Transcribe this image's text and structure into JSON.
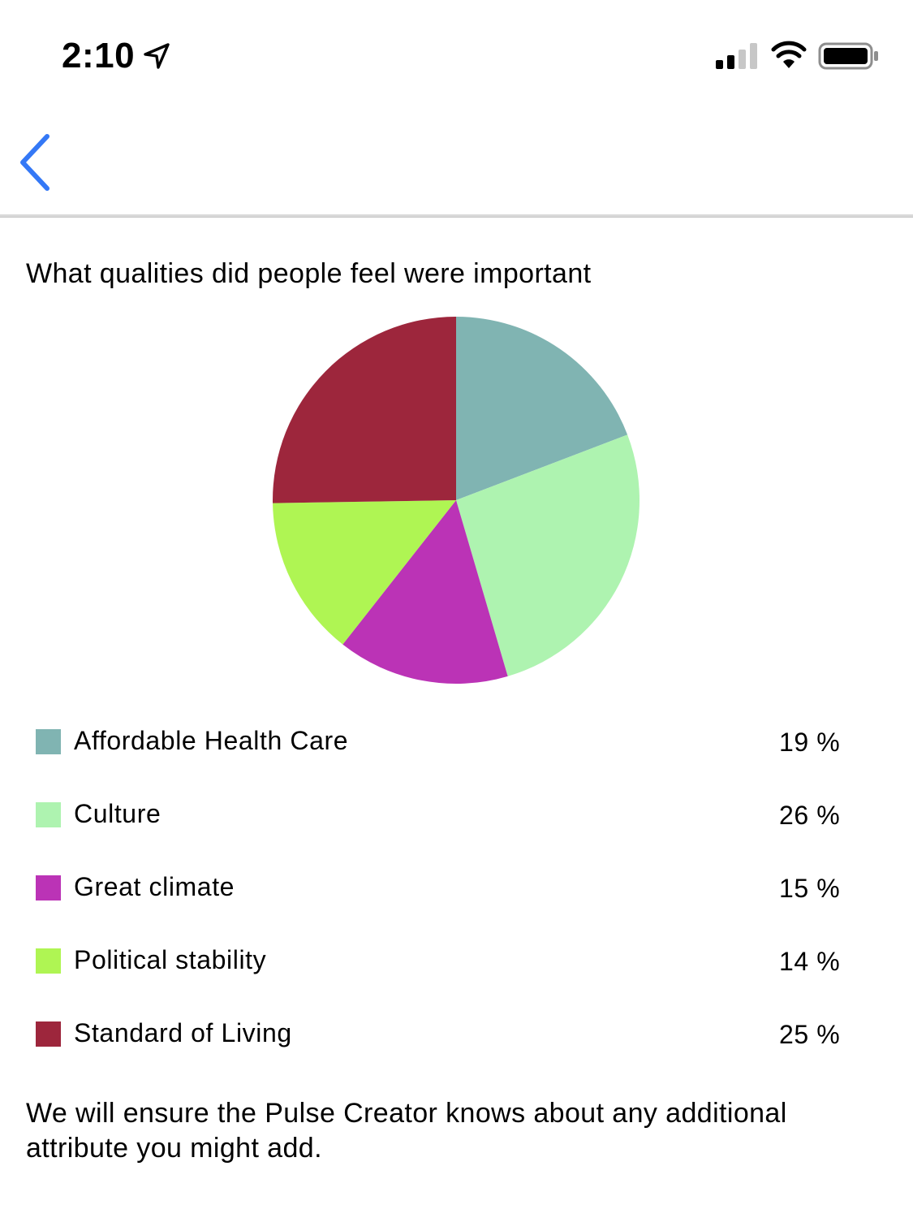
{
  "status_bar": {
    "time": "2:10",
    "icons": [
      "location-arrow-icon",
      "signal-icon",
      "wifi-icon",
      "battery-icon"
    ]
  },
  "nav": {
    "back_icon": "chevron-left-icon",
    "accent": "#3478f6"
  },
  "question": "What qualities did people feel were important",
  "legend": [
    {
      "label": "Affordable Health Care",
      "value": "19 %",
      "color": "#80b4b2"
    },
    {
      "label": "Culture",
      "value": "26 %",
      "color": "#aef3b0"
    },
    {
      "label": "Great climate",
      "value": "15 %",
      "color": "#bb33b6"
    },
    {
      "label": "Political stability",
      "value": "14 %",
      "color": "#aff553"
    },
    {
      "label": "Standard of Living",
      "value": "25 %",
      "color": "#9d263c"
    }
  ],
  "chart_data": {
    "type": "pie",
    "categories": [
      "Affordable Health Care",
      "Culture",
      "Great climate",
      "Political stability",
      "Standard of Living"
    ],
    "values": [
      19,
      26,
      15,
      14,
      25
    ],
    "colors": [
      "#80b4b2",
      "#aef3b0",
      "#bb33b6",
      "#aff553",
      "#9d263c"
    ],
    "start": "top",
    "direction": "clockwise"
  },
  "footer": "We will ensure the Pulse Creator knows about any additional attribute you might add."
}
